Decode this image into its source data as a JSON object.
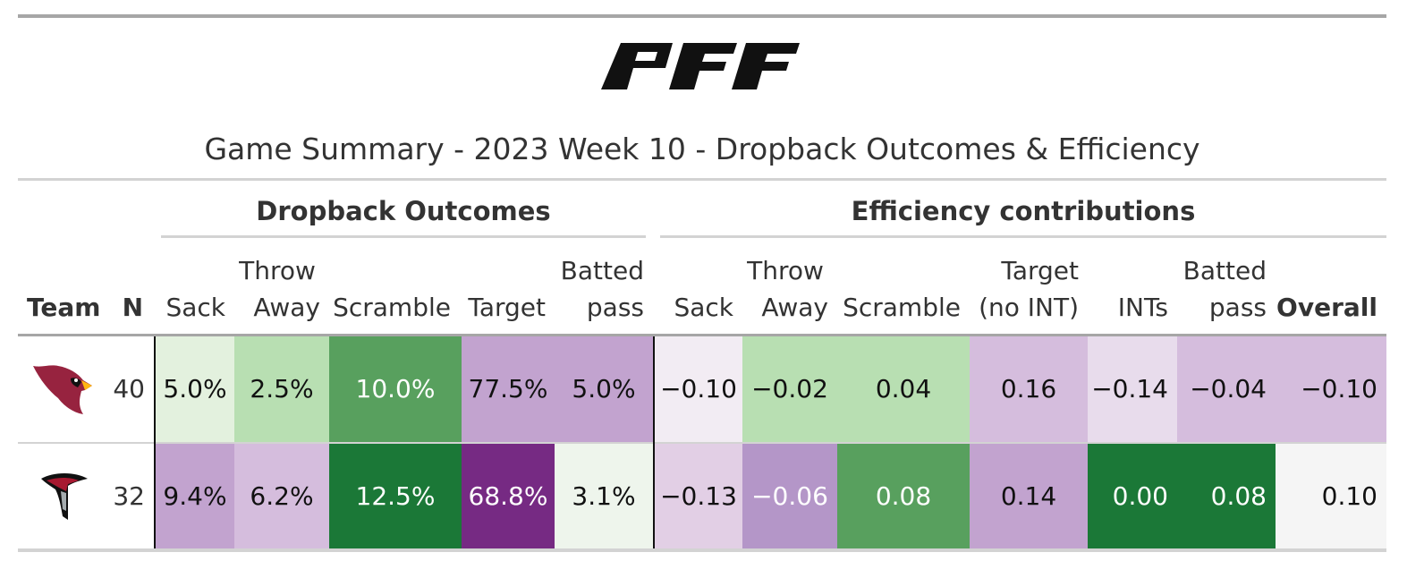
{
  "title": "Game Summary - 2023 Week 10 - Dropback Outcomes & Efficiency",
  "brand": {
    "logo_text": "PFF"
  },
  "spanners": {
    "dropback": "Dropback Outcomes",
    "efficiency": "Efficiency contributions"
  },
  "columns": {
    "team": "Team",
    "n": "N",
    "dropback": {
      "sack": [
        "Sack"
      ],
      "throw_away": [
        "Throw",
        "Away"
      ],
      "scramble": [
        "Scramble"
      ],
      "target": [
        "Target"
      ],
      "batted": [
        "Batted",
        "pass"
      ]
    },
    "efficiency": {
      "sack": [
        "Sack"
      ],
      "throw_away": [
        "Throw",
        "Away"
      ],
      "scramble": [
        "Scramble"
      ],
      "target": [
        "Target",
        "(no INT)"
      ],
      "ints": [
        "INTs"
      ],
      "batted": [
        "Batted",
        "pass"
      ],
      "overall": [
        "Overall"
      ]
    }
  },
  "rows": [
    {
      "team_icon": "cardinals-logo-icon",
      "n": "40",
      "dropback": [
        {
          "text": "5.0%",
          "bg": "#e3f1de",
          "fg": "#111111"
        },
        {
          "text": "2.5%",
          "bg": "#b8dfb2",
          "fg": "#111111"
        },
        {
          "text": "10.0%",
          "bg": "#58a05e",
          "fg": "#ffffff"
        },
        {
          "text": "77.5%",
          "bg": "#c2a3cf",
          "fg": "#111111"
        },
        {
          "text": "5.0%",
          "bg": "#c2a3cf",
          "fg": "#111111"
        }
      ],
      "efficiency": [
        {
          "text": "−0.10",
          "bg": "#f2ecf3",
          "fg": "#111111"
        },
        {
          "text": "−0.02",
          "bg": "#b8dfb2",
          "fg": "#111111"
        },
        {
          "text": "0.04",
          "bg": "#b8dfb2",
          "fg": "#111111"
        },
        {
          "text": "0.16",
          "bg": "#d5bddd",
          "fg": "#111111"
        },
        {
          "text": "−0.14",
          "bg": "#e8dcec",
          "fg": "#111111"
        },
        {
          "text": "−0.04",
          "bg": "#d5bddd",
          "fg": "#111111"
        },
        {
          "text": "−0.10",
          "bg": "#d5bddd",
          "fg": "#111111"
        }
      ]
    },
    {
      "team_icon": "falcons-logo-icon",
      "n": "32",
      "dropback": [
        {
          "text": "9.4%",
          "bg": "#c2a3cf",
          "fg": "#111111"
        },
        {
          "text": "6.2%",
          "bg": "#d5bddd",
          "fg": "#111111"
        },
        {
          "text": "12.5%",
          "bg": "#1b7837",
          "fg": "#ffffff"
        },
        {
          "text": "68.8%",
          "bg": "#762a83",
          "fg": "#ffffff"
        },
        {
          "text": "3.1%",
          "bg": "#eef5ec",
          "fg": "#111111"
        }
      ],
      "efficiency": [
        {
          "text": "−0.13",
          "bg": "#e2cfe5",
          "fg": "#111111"
        },
        {
          "text": "−0.06",
          "bg": "#b496c8",
          "fg": "#ffffff"
        },
        {
          "text": "0.08",
          "bg": "#58a05e",
          "fg": "#ffffff"
        },
        {
          "text": "0.14",
          "bg": "#c2a3cf",
          "fg": "#111111"
        },
        {
          "text": "0.00",
          "bg": "#1b7837",
          "fg": "#ffffff"
        },
        {
          "text": "0.08",
          "bg": "#1b7837",
          "fg": "#ffffff"
        },
        {
          "text": "0.10",
          "bg": "#f5f5f5",
          "fg": "#111111"
        }
      ]
    }
  ]
}
